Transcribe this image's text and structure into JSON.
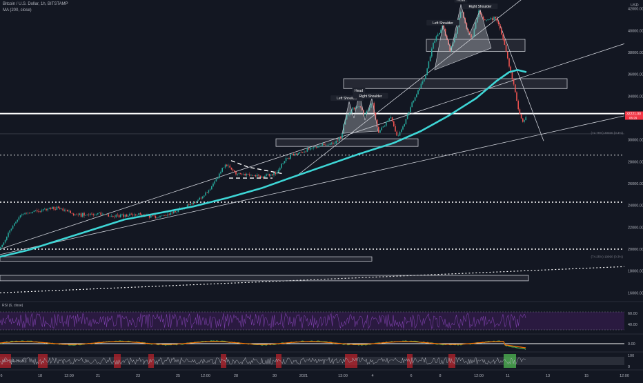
{
  "header": {
    "symbol_line": "Bitcoin / U.S. Dollar, 1h, BITSTAMP",
    "ma_line": "MA (200, close)"
  },
  "panes": {
    "rsi_label": "RSI (6, close)",
    "macd_label": "",
    "mfi_label": "MFI (14, 20, 80)"
  },
  "colors": {
    "background": "#131722",
    "candle_up": "#26a69a",
    "candle_down": "#ef5350",
    "ma": "#3ed6d6",
    "price_tag": "#f23645",
    "rsi_band": "#2a1a40",
    "rsi_line": "#7b3fa8",
    "macd_fast": "#4caf50",
    "macd_slow": "#ff6d00",
    "mfi_red": "#c2242b",
    "mfi_green": "#4caf50"
  },
  "chart_data": {
    "type": "candlestick",
    "title": "Bitcoin / U.S. Dollar, 1h, BITSTAMP",
    "y_axis": {
      "ticks": [
        16000,
        18000,
        20000,
        22000,
        24000,
        26000,
        28000,
        30000,
        32000,
        34000,
        36000,
        38000,
        40000,
        42000
      ],
      "tick_labels": [
        "16000.00",
        "18000.00",
        "20000.00",
        "22000.00",
        "24000.00",
        "26000.00",
        "28000.00",
        "30000.00",
        "32000.00",
        "34000.00",
        "36000.00",
        "38000.00",
        "40000.00",
        "42000.00"
      ],
      "range": [
        15200,
        42800
      ],
      "currency_label": "USD"
    },
    "x_axis": {
      "tick_labels": [
        "6",
        "18",
        "12:00",
        "21",
        "23",
        "25",
        "12:00",
        "28",
        "30",
        "2021",
        "13:00",
        "4",
        "6",
        "8",
        "12:00",
        "11",
        "13",
        "15",
        "12:00"
      ]
    },
    "price_tag": {
      "value": "32221.00",
      "countdown": "06:29"
    },
    "price_path": [
      [
        0,
        20000
      ],
      [
        15,
        21800
      ],
      [
        30,
        23200
      ],
      [
        55,
        23500
      ],
      [
        85,
        23800
      ],
      [
        110,
        23100
      ],
      [
        140,
        23300
      ],
      [
        165,
        23000
      ],
      [
        200,
        23200
      ],
      [
        230,
        22900
      ],
      [
        260,
        23600
      ],
      [
        285,
        24400
      ],
      [
        300,
        25200
      ],
      [
        315,
        26500
      ],
      [
        325,
        27700
      ],
      [
        335,
        27400
      ],
      [
        345,
        26800
      ],
      [
        360,
        26900
      ],
      [
        380,
        26600
      ],
      [
        400,
        26900
      ],
      [
        410,
        28000
      ],
      [
        425,
        28600
      ],
      [
        440,
        29000
      ],
      [
        460,
        29400
      ],
      [
        485,
        29800
      ],
      [
        495,
        30400
      ],
      [
        500,
        31900
      ],
      [
        510,
        32900
      ],
      [
        522,
        33100
      ],
      [
        528,
        32200
      ],
      [
        540,
        33400
      ],
      [
        548,
        30600
      ],
      [
        556,
        31200
      ],
      [
        566,
        32100
      ],
      [
        576,
        30300
      ],
      [
        586,
        31500
      ],
      [
        600,
        33800
      ],
      [
        615,
        35500
      ],
      [
        628,
        38800
      ],
      [
        642,
        40500
      ],
      [
        652,
        38200
      ],
      [
        660,
        39500
      ],
      [
        668,
        41900
      ],
      [
        676,
        40300
      ],
      [
        684,
        39200
      ],
      [
        694,
        41800
      ],
      [
        704,
        40800
      ],
      [
        716,
        41200
      ],
      [
        726,
        40000
      ],
      [
        733,
        38200
      ],
      [
        738,
        36800
      ],
      [
        743,
        35400
      ],
      [
        748,
        34000
      ],
      [
        752,
        32600
      ],
      [
        757,
        31500
      ],
      [
        763,
        32221
      ]
    ],
    "ma200": [
      [
        0,
        19300
      ],
      [
        40,
        19900
      ],
      [
        80,
        20700
      ],
      [
        130,
        21700
      ],
      [
        180,
        22700
      ],
      [
        230,
        23300
      ],
      [
        280,
        23900
      ],
      [
        330,
        24700
      ],
      [
        380,
        25600
      ],
      [
        420,
        26500
      ],
      [
        470,
        27600
      ],
      [
        520,
        28700
      ],
      [
        570,
        29700
      ],
      [
        610,
        30800
      ],
      [
        650,
        32200
      ],
      [
        690,
        33800
      ],
      [
        720,
        35400
      ],
      [
        738,
        36200
      ],
      [
        750,
        36400
      ],
      [
        763,
        36200
      ]
    ],
    "annotations": [
      {
        "text": "Left Shoulder",
        "price": 33700,
        "x": 503
      },
      {
        "text": "Head",
        "price": 34400,
        "x": 520
      },
      {
        "text": "Right Shoulder",
        "price": 33900,
        "x": 537
      },
      {
        "text": "Left Shoulder",
        "price": 40600,
        "x": 642
      },
      {
        "text": "Head",
        "price": 42700,
        "x": 668
      },
      {
        "text": "Right Shoulder",
        "price": 42100,
        "x": 696
      }
    ],
    "level_labels": [
      {
        "text": "(72.75%) 30030 (0.4%)",
        "price": 30550
      },
      {
        "text": "(74.25%) 19990 (0.3%)",
        "price": 19200
      }
    ],
    "zones": [
      {
        "from_price": 38100,
        "to_price": 39200,
        "x0": 618,
        "x1": 761
      },
      {
        "from_price": 34700,
        "to_price": 35600,
        "x0": 498,
        "x1": 822
      },
      {
        "from_price": 29400,
        "to_price": 30100,
        "x0": 400,
        "x1": 606
      },
      {
        "from_price": 18900,
        "to_price": 19300,
        "x0": 0,
        "x1": 539
      },
      {
        "from_price": 17100,
        "to_price": 17600,
        "x0": 0,
        "x1": 766
      }
    ],
    "rsi": {
      "levels": [
        70,
        30
      ],
      "tick_labels": [
        "60.00",
        "40.00"
      ]
    },
    "macd": {
      "tick_labels": [
        "0.00"
      ]
    },
    "mfi": {
      "tick_labels": [
        "100",
        "0"
      ]
    }
  }
}
